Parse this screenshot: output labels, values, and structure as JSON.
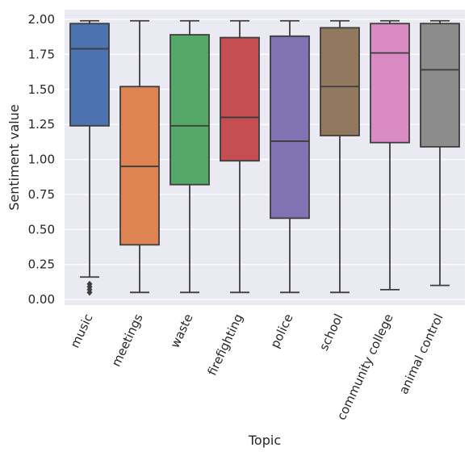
{
  "chart_data": {
    "type": "box",
    "title": "",
    "xlabel": "Topic",
    "ylabel": "Sentiment value",
    "ylim": [
      -0.03,
      2.07
    ],
    "yticks": [
      "0.00",
      "0.25",
      "0.50",
      "0.75",
      "1.00",
      "1.25",
      "1.50",
      "1.75",
      "2.00"
    ],
    "grid": true,
    "background": "#EAEAF2",
    "categories": [
      "music",
      "meetings",
      "waste",
      "firefighting",
      "police",
      "school",
      "community college",
      "animal control"
    ],
    "boxes": [
      {
        "category": "music",
        "whisker_low": 0.16,
        "q1": 1.24,
        "median": 1.79,
        "q3": 1.97,
        "whisker_high": 1.99,
        "outliers": [
          0.05,
          0.07,
          0.09,
          0.11
        ],
        "color": "#4C72B0"
      },
      {
        "category": "meetings",
        "whisker_low": 0.05,
        "q1": 0.39,
        "median": 0.95,
        "q3": 1.52,
        "whisker_high": 1.99,
        "outliers": [],
        "color": "#DD8452"
      },
      {
        "category": "waste",
        "whisker_low": 0.05,
        "q1": 0.82,
        "median": 1.24,
        "q3": 1.89,
        "whisker_high": 1.99,
        "outliers": [],
        "color": "#55A868"
      },
      {
        "category": "firefighting",
        "whisker_low": 0.05,
        "q1": 0.99,
        "median": 1.3,
        "q3": 1.87,
        "whisker_high": 1.99,
        "outliers": [],
        "color": "#C44E52"
      },
      {
        "category": "police",
        "whisker_low": 0.05,
        "q1": 0.58,
        "median": 1.13,
        "q3": 1.88,
        "whisker_high": 1.99,
        "outliers": [],
        "color": "#8172B3"
      },
      {
        "category": "school",
        "whisker_low": 0.05,
        "q1": 1.17,
        "median": 1.52,
        "q3": 1.94,
        "whisker_high": 1.99,
        "outliers": [],
        "color": "#937860"
      },
      {
        "category": "community college",
        "whisker_low": 0.07,
        "q1": 1.12,
        "median": 1.76,
        "q3": 1.97,
        "whisker_high": 1.99,
        "outliers": [],
        "color": "#DA8BC3"
      },
      {
        "category": "animal control",
        "whisker_low": 0.1,
        "q1": 1.09,
        "median": 1.64,
        "q3": 1.97,
        "whisker_high": 1.99,
        "outliers": [],
        "color": "#8C8C8C"
      }
    ]
  }
}
